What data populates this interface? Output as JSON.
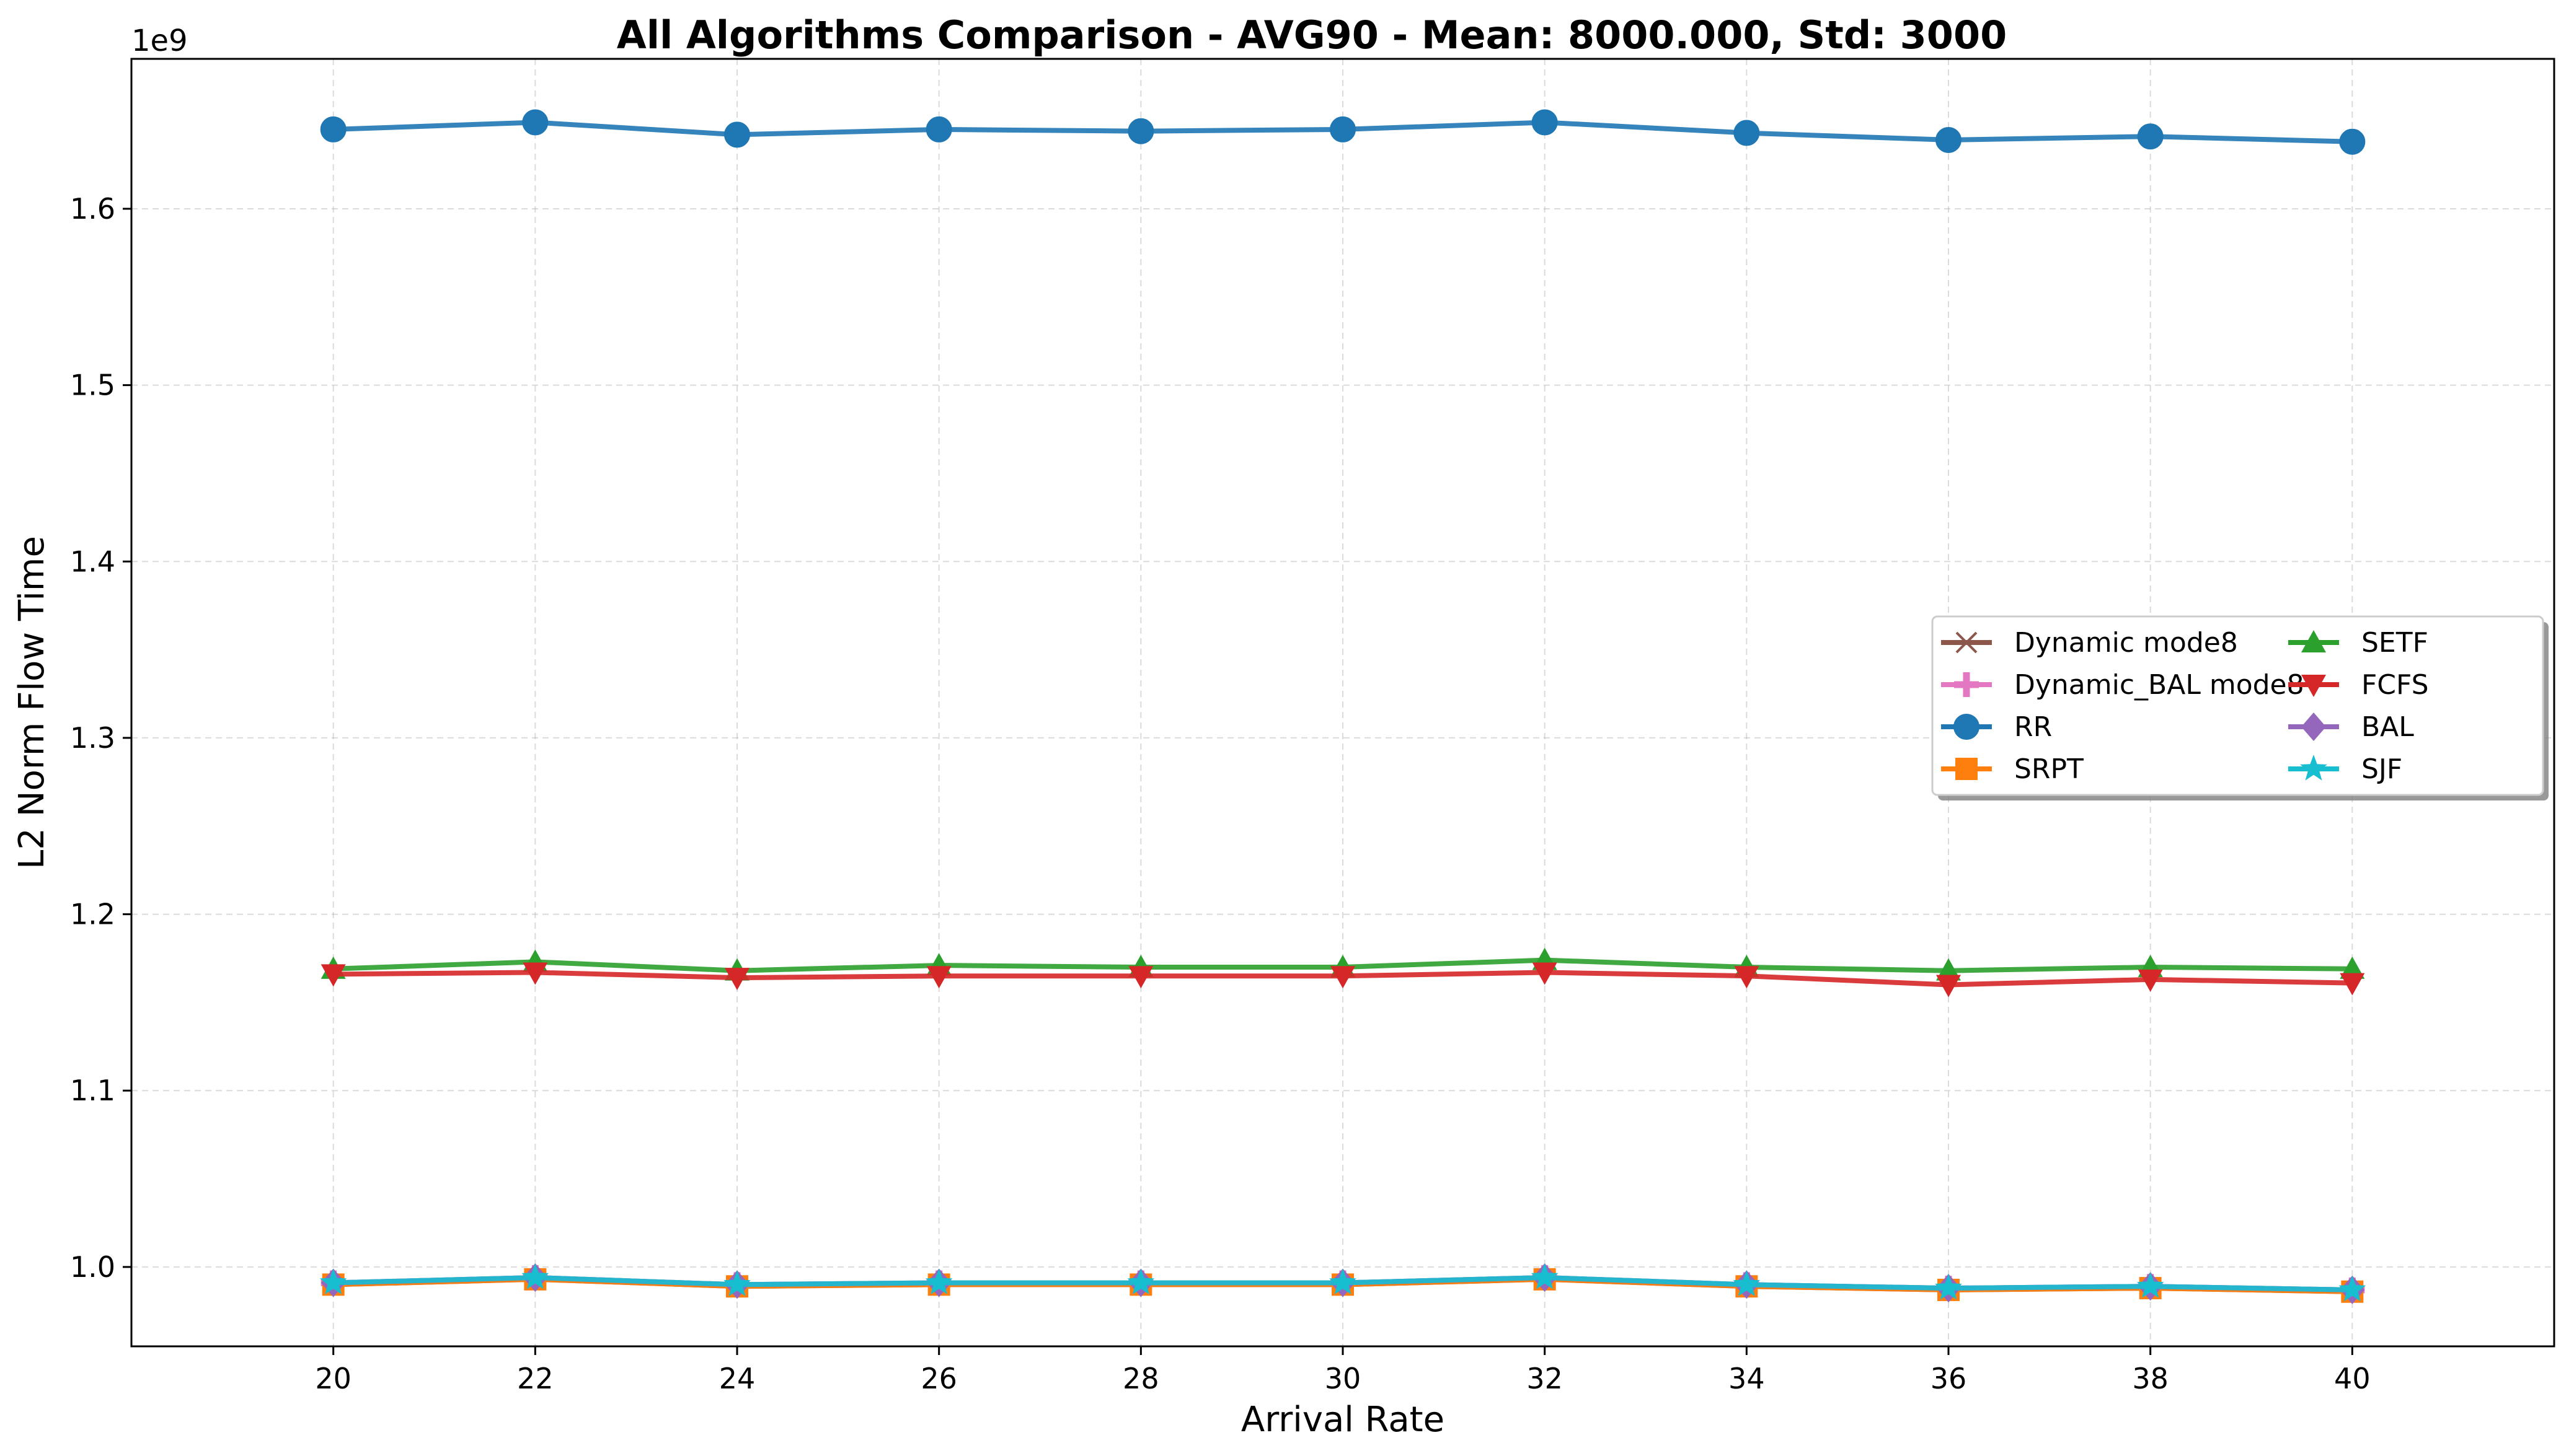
{
  "chart_data": {
    "type": "line",
    "title": "All Algorithms Comparison - AVG90 - Mean: 8000.000, Std: 3000",
    "xlabel": "Arrival Rate",
    "ylabel": "L2 Norm Flow Time",
    "y_offset_label": "1e9",
    "y_scale": 1000000000,
    "x": [
      20,
      22,
      24,
      26,
      28,
      30,
      32,
      34,
      36,
      38,
      40
    ],
    "xlim": [
      18,
      42
    ],
    "ylim": [
      0.955,
      1.685
    ],
    "xticks": [
      "20",
      "22",
      "24",
      "26",
      "28",
      "30",
      "32",
      "34",
      "36",
      "38",
      "40"
    ],
    "yticks": [
      "1.0",
      "1.1",
      "1.2",
      "1.3",
      "1.4",
      "1.5",
      "1.6"
    ],
    "grid": true,
    "legend_position": "center-right",
    "legend_columns": 2,
    "series": [
      {
        "name": "Dynamic mode8",
        "color": "#8c564b",
        "marker": "x",
        "values": [
          0.99,
          0.993,
          0.989,
          0.99,
          0.99,
          0.99,
          0.993,
          0.989,
          0.987,
          0.988,
          0.986
        ]
      },
      {
        "name": "Dynamic_BAL mode8",
        "color": "#e377c2",
        "marker": "plus",
        "values": [
          0.991,
          0.994,
          0.99,
          0.991,
          0.991,
          0.991,
          0.994,
          0.99,
          0.988,
          0.989,
          0.987
        ]
      },
      {
        "name": "RR",
        "color": "#1f77b4",
        "marker": "circle",
        "values": [
          1.645,
          1.649,
          1.642,
          1.645,
          1.644,
          1.645,
          1.649,
          1.643,
          1.639,
          1.641,
          1.638
        ]
      },
      {
        "name": "SRPT",
        "color": "#ff7f0e",
        "marker": "square",
        "values": [
          0.99,
          0.993,
          0.989,
          0.99,
          0.99,
          0.99,
          0.993,
          0.989,
          0.987,
          0.988,
          0.986
        ]
      },
      {
        "name": "SETF",
        "color": "#2ca02c",
        "marker": "triangle-up",
        "values": [
          1.169,
          1.173,
          1.168,
          1.171,
          1.17,
          1.17,
          1.174,
          1.17,
          1.168,
          1.17,
          1.169
        ]
      },
      {
        "name": "FCFS",
        "color": "#d62728",
        "marker": "triangle-down",
        "values": [
          1.166,
          1.167,
          1.164,
          1.165,
          1.165,
          1.165,
          1.167,
          1.165,
          1.16,
          1.163,
          1.161
        ]
      },
      {
        "name": "BAL",
        "color": "#9467bd",
        "marker": "diamond",
        "values": [
          0.991,
          0.994,
          0.99,
          0.991,
          0.991,
          0.991,
          0.994,
          0.99,
          0.988,
          0.989,
          0.987
        ]
      },
      {
        "name": "SJF",
        "color": "#17becf",
        "marker": "star",
        "values": [
          0.991,
          0.994,
          0.99,
          0.991,
          0.991,
          0.991,
          0.994,
          0.99,
          0.988,
          0.989,
          0.987
        ]
      }
    ]
  }
}
